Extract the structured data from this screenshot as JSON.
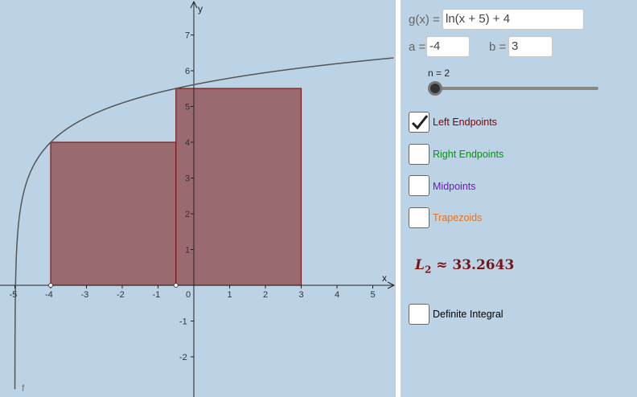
{
  "graph": {
    "x_axis_label": "x",
    "y_axis_label": "y",
    "function_label": "f",
    "x_ticks": [
      "-5",
      "-4",
      "-3",
      "-2",
      "-1",
      "0",
      "1",
      "2",
      "3",
      "4",
      "5"
    ],
    "y_ticks": [
      "-2",
      "-1",
      "1",
      "2",
      "3",
      "4",
      "5",
      "6",
      "7"
    ],
    "colors": {
      "rect_fill": "#9a6a70",
      "rect_stroke": "#7a1a1a",
      "curve": "#555555",
      "axis": "#222222"
    }
  },
  "chart_data": {
    "type": "area",
    "function": "ln(x + 5) + 4",
    "xlim": [
      -5.5,
      5.5
    ],
    "ylim": [
      -3,
      7.7
    ],
    "rectangles": [
      {
        "x_start": -4,
        "x_end": -0.5,
        "height": 4.0
      },
      {
        "x_start": -0.5,
        "x_end": 3,
        "height": 5.5041
      }
    ]
  },
  "controls": {
    "g_label": "g(x) =",
    "g_value": "ln(x + 5) + 4",
    "a_label": "a =",
    "a_value": "-4",
    "b_label": "b =",
    "b_value": "3",
    "n_label": "n = 2",
    "n_value": 2
  },
  "checkboxes": [
    {
      "label": "Left Endpoints",
      "checked": true,
      "color": "#800000"
    },
    {
      "label": "Right Endpoints",
      "checked": false,
      "color": "#009900"
    },
    {
      "label": "Midpoints",
      "checked": false,
      "color": "#6a1ab8"
    },
    {
      "label": "Trapezoids",
      "checked": false,
      "color": "#e8701a"
    }
  ],
  "result": {
    "symbol": "L",
    "subscript": "2",
    "approx": "≈ 33.2643"
  },
  "definite_integral": {
    "label": "Definite Integral",
    "checked": false,
    "color": "#000000"
  }
}
